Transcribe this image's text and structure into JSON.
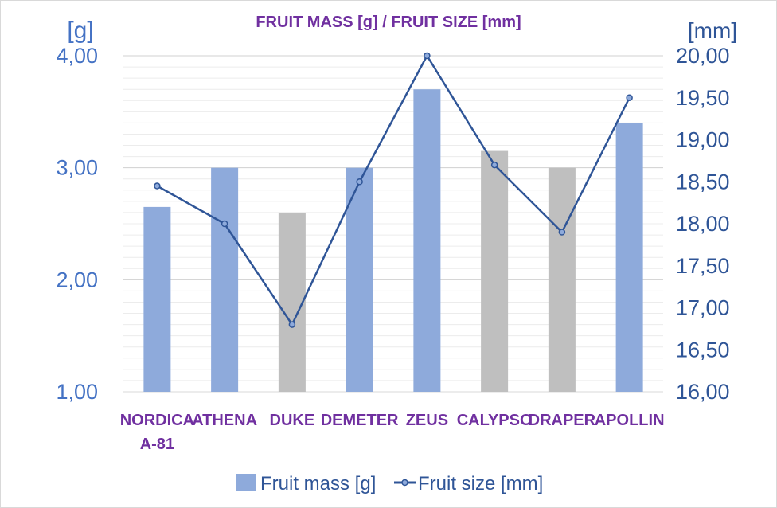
{
  "chart_data": {
    "type": "bar",
    "title": "FRUIT MASS [g] / FRUIT SIZE [mm]",
    "y_left_unit": "[g]",
    "y_right_unit": "[mm]",
    "y_left_range": [
      1,
      4
    ],
    "y_left_ticks": [
      "1,00",
      "2,00",
      "3,00",
      "4,00"
    ],
    "y_right_range": [
      16,
      20
    ],
    "y_right_ticks": [
      "16,00",
      "16,50",
      "17,00",
      "17,50",
      "18,00",
      "18,50",
      "19,00",
      "19,50",
      "20,00"
    ],
    "categories": [
      [
        "NORDICA",
        "A-81"
      ],
      [
        "ATHENA"
      ],
      [
        "DUKE"
      ],
      [
        "DEMETER"
      ],
      [
        "ZEUS"
      ],
      [
        "CALYPSO"
      ],
      [
        "DRAPER"
      ],
      [
        "APOLLIN"
      ]
    ],
    "series": [
      {
        "name": "Fruit mass [g]",
        "kind": "bar",
        "axis": "left",
        "values": [
          2.65,
          3.0,
          2.6,
          3.0,
          3.7,
          3.15,
          3.0,
          3.4
        ],
        "bar_colors": [
          "#8eaadb",
          "#8eaadb",
          "#bfbfbf",
          "#8eaadb",
          "#8eaadb",
          "#bfbfbf",
          "#bfbfbf",
          "#8eaadb"
        ]
      },
      {
        "name": "Fruit size [mm]",
        "kind": "line",
        "axis": "right",
        "values": [
          18.45,
          18.0,
          16.8,
          18.5,
          20.0,
          18.7,
          17.9,
          19.5
        ],
        "color": "#2f5597"
      }
    ],
    "legend_position": "bottom",
    "grid": true
  }
}
